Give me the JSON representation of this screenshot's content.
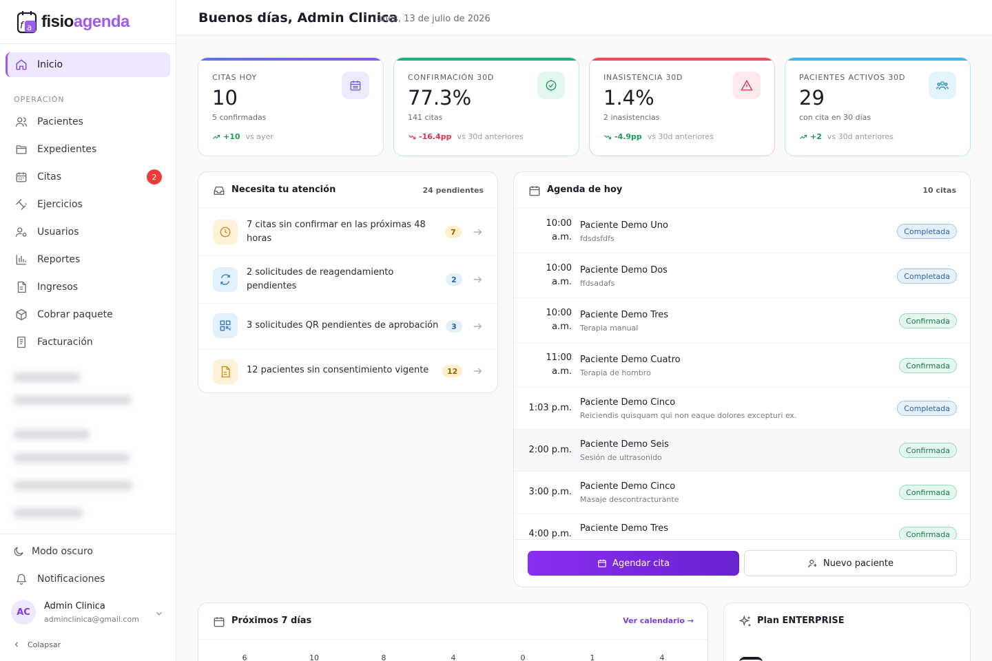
{
  "app": {
    "logo_prefix": "fisio",
    "logo_suffix": "agenda",
    "logo_mark": "fa"
  },
  "sidebar": {
    "home": {
      "label": "Inicio",
      "icon": "home-icon"
    },
    "section_operation": "OPERACIÓN",
    "items": [
      {
        "label": "Pacientes",
        "icon": "users-icon"
      },
      {
        "label": "Expedientes",
        "icon": "folder-icon"
      },
      {
        "label": "Citas",
        "icon": "calendar-icon",
        "badge": "2"
      },
      {
        "label": "Ejercicios",
        "icon": "dumbbell-icon"
      },
      {
        "label": "Usuarios",
        "icon": "user-cog-icon"
      },
      {
        "label": "Reportes",
        "icon": "bar-chart-icon"
      },
      {
        "label": "Ingresos",
        "icon": "receipt-icon"
      },
      {
        "label": "Cobrar paquete",
        "icon": "package-icon"
      },
      {
        "label": "Facturación",
        "icon": "invoice-icon"
      }
    ],
    "dark_mode": "Modo oscuro",
    "notifications": "Notificaciones",
    "user": {
      "initials": "AC",
      "name": "Admin Clinica",
      "email": "adminclinica@gmail.com"
    },
    "collapse": "Colapsar"
  },
  "header": {
    "greeting": "Buenos días, Admin Clinica",
    "date": "lunes, 13 de julio de 2026"
  },
  "kpis": [
    {
      "label": "CITAS HOY",
      "value": "10",
      "sub": "5 confirmadas",
      "trend": "+10",
      "compare": "vs ayer",
      "trend_color": "#1e9a5a",
      "accent": "#7b6cf0",
      "icon": "calendar-icon"
    },
    {
      "label": "CONFIRMACIÓN 30D",
      "value": "77.3%",
      "sub": "141 citas",
      "trend": "-16.4pp",
      "compare": "vs 30d anteriores",
      "trend_color": "#e0314b",
      "accent": "#22b07a",
      "icon": "check-circle-icon"
    },
    {
      "label": "INASISTENCIA 30D",
      "value": "1.4%",
      "sub": "2 inasistencias",
      "trend": "-4.9pp",
      "compare": "vs 30d anteriores",
      "trend_color": "#1e9a5a",
      "accent": "#ef4a5c",
      "icon": "alert-triangle-icon"
    },
    {
      "label": "PACIENTES ACTIVOS 30D",
      "value": "29",
      "sub": "con cita en 30 días",
      "trend": "+2",
      "compare": "vs 30d anteriores",
      "trend_color": "#1e9a5a",
      "accent": "#3fb6e8",
      "icon": "people-icon"
    }
  ],
  "attention": {
    "title": "Necesita tu atención",
    "count": "24 pendientes",
    "items": [
      {
        "text": "7 citas sin confirmar en las próximas 48 horas",
        "badge": "7",
        "icon": "clock-icon"
      },
      {
        "text": "2 solicitudes de reagendamiento pendientes",
        "badge": "2",
        "icon": "refresh-icon"
      },
      {
        "text": "3 solicitudes QR pendientes de aprobación",
        "badge": "3",
        "icon": "qr-icon"
      },
      {
        "text": "12 pacientes sin consentimiento vigente",
        "badge": "12",
        "icon": "document-icon"
      }
    ]
  },
  "agenda": {
    "title": "Agenda de hoy",
    "count": "10 citas",
    "items": [
      {
        "time1": "10:00",
        "time2": "a.m.",
        "name": "Paciente Demo Uno",
        "desc": "fdsdsfdfs",
        "status": "Completada"
      },
      {
        "time1": "10:00",
        "time2": "a.m.",
        "name": "Paciente Demo Dos",
        "desc": "ffdsadafs",
        "status": "Completada"
      },
      {
        "time1": "10:00",
        "time2": "a.m.",
        "name": "Paciente Demo Tres",
        "desc": "Terapia manual",
        "status": "Confirmada"
      },
      {
        "time1": "11:00",
        "time2": "a.m.",
        "name": "Paciente Demo Cuatro",
        "desc": "Terapia de hombro",
        "status": "Confirmada"
      },
      {
        "time1": "1:03 p.m.",
        "time2": "",
        "name": "Paciente Demo Cinco",
        "desc": "Reiciendis quisquam qui non eaque dolores excepturi ex.",
        "status": "Completada"
      },
      {
        "time1": "2:00 p.m.",
        "time2": "",
        "name": "Paciente Demo Seis",
        "desc": "Sesión de ultrasonido",
        "status": "Confirmada"
      },
      {
        "time1": "3:00 p.m.",
        "time2": "",
        "name": "Paciente Demo Cinco",
        "desc": "Masaje descontracturante",
        "status": "Confirmada"
      },
      {
        "time1": "4:00 p.m.",
        "time2": "",
        "name": "Paciente Demo Tres",
        "desc": "",
        "status": "Confirmada"
      }
    ],
    "primary_button": "Agendar cita",
    "secondary_button": "Nuevo paciente"
  },
  "week": {
    "title": "Próximos 7 días",
    "link": "Ver calendario →",
    "values": [
      "6",
      "10",
      "8",
      "4",
      "0",
      "1",
      "4"
    ]
  },
  "plan": {
    "title": "Plan ENTERPRISE"
  }
}
